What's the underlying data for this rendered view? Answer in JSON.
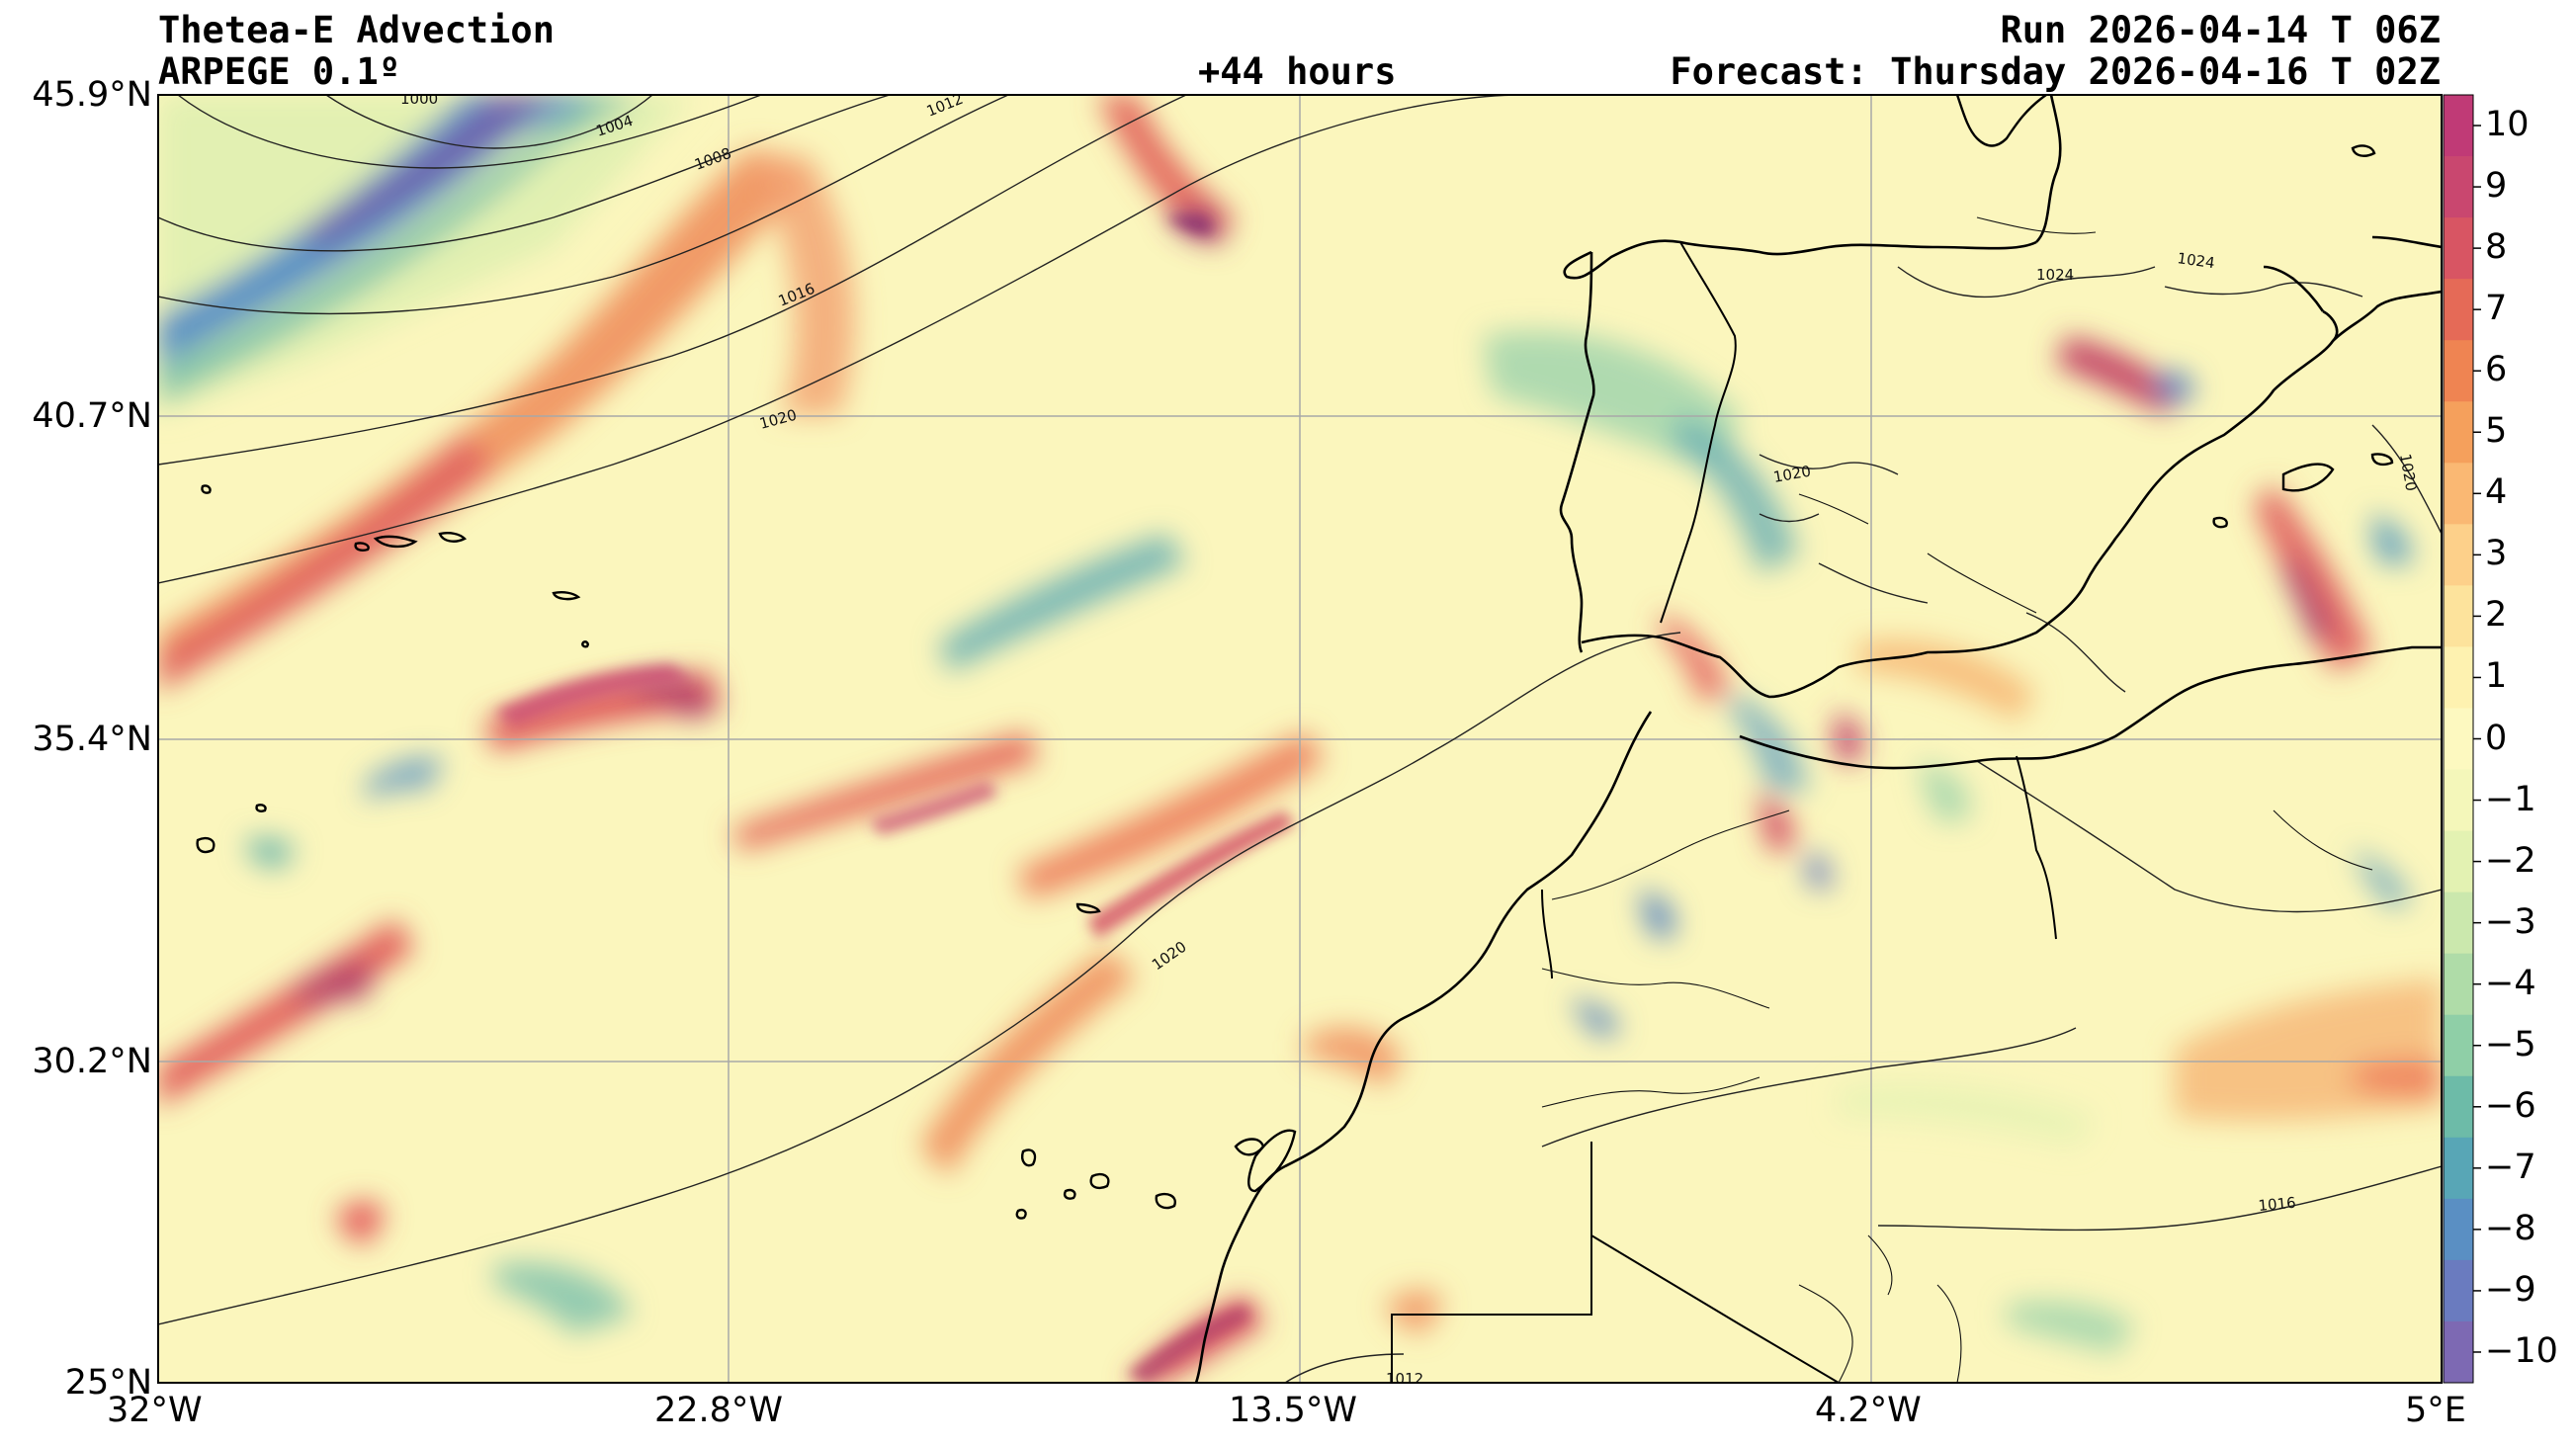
{
  "header": {
    "title": "Thetea-E Advection",
    "model": "ARPEGE 0.1º",
    "lead": "+44 hours",
    "run": "Run 2026-04-14 T 06Z",
    "forecast": "Forecast: Thursday 2026-04-16 T 02Z"
  },
  "map": {
    "lat_labels": [
      "45.9°N",
      "40.7°N",
      "35.4°N",
      "30.2°N",
      "25°N"
    ],
    "lon_labels": [
      "32°W",
      "22.8°W",
      "13.5°W",
      "4.2°W",
      "5°E"
    ],
    "extent": {
      "lon_min": -32,
      "lon_max": 5,
      "lat_min": 25,
      "lat_max": 45.9
    },
    "isobars": [
      "1000",
      "1004",
      "1008",
      "1012",
      "1016",
      "1020",
      "1020",
      "1020",
      "1024",
      "1024",
      "1020",
      "1016",
      "1012"
    ]
  },
  "colorbar": {
    "ticks": [
      "10",
      "9",
      "8",
      "7",
      "6",
      "5",
      "4",
      "3",
      "2",
      "1",
      "0",
      "−1",
      "−2",
      "−3",
      "−4",
      "−5",
      "−6",
      "−7",
      "−8",
      "−9",
      "−10"
    ],
    "colors": [
      "#c03a76",
      "#c9476f",
      "#d85563",
      "#e56a57",
      "#ef8452",
      "#f5a05c",
      "#fab873",
      "#fdd08a",
      "#fde39c",
      "#fef2b0",
      "#fdf9c0",
      "#f4f7ba",
      "#e3f2b2",
      "#cbe8ad",
      "#afdca8",
      "#8fcfa7",
      "#6dbba8",
      "#58a6b6",
      "#5a8fc3",
      "#6a7bbf",
      "#7d69b3"
    ]
  }
}
